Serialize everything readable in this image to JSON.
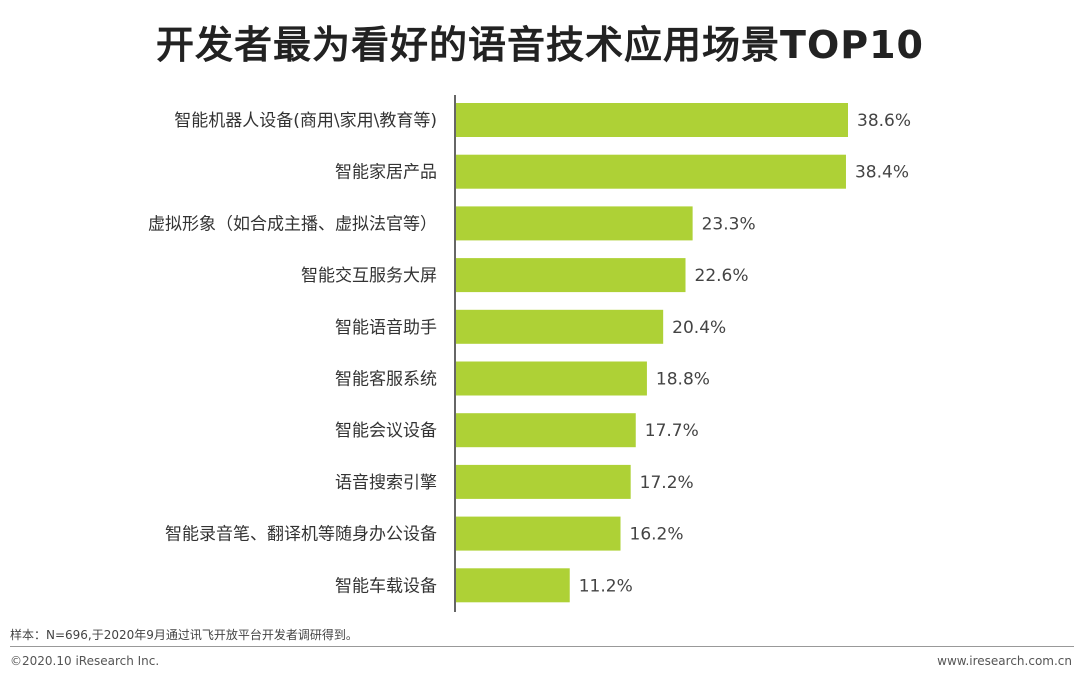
{
  "chart_data": {
    "type": "bar",
    "orientation": "horizontal",
    "title": "开发者最为看好的语音技术应用场景TOP10",
    "categories": [
      "智能机器人设备(商用\\家用\\教育等)",
      "智能家居产品",
      "虚拟形象（如合成主播、虚拟法官等）",
      "智能交互服务大屏",
      "智能语音助手",
      "智能客服系统",
      "智能会议设备",
      "语音搜索引擎",
      "智能录音笔、翻译机等随身办公设备",
      "智能车载设备"
    ],
    "values": [
      38.6,
      38.4,
      23.3,
      22.6,
      20.4,
      18.8,
      17.7,
      17.2,
      16.2,
      11.2
    ],
    "value_labels": [
      "38.6%",
      "38.4%",
      "23.3%",
      "22.6%",
      "20.4%",
      "18.8%",
      "17.7%",
      "17.2%",
      "16.2%",
      "11.2%"
    ],
    "xlim": [
      0,
      40
    ],
    "grid": false,
    "legend": "none",
    "bar_color": "#aed136",
    "axis_color": "#333333"
  },
  "footer": {
    "source_note": "样本：N=696,于2020年9月通过讯飞开放平台开发者调研得到。",
    "copyright": "©2020.10 iResearch Inc.",
    "website": "www.iresearch.com.cn"
  }
}
